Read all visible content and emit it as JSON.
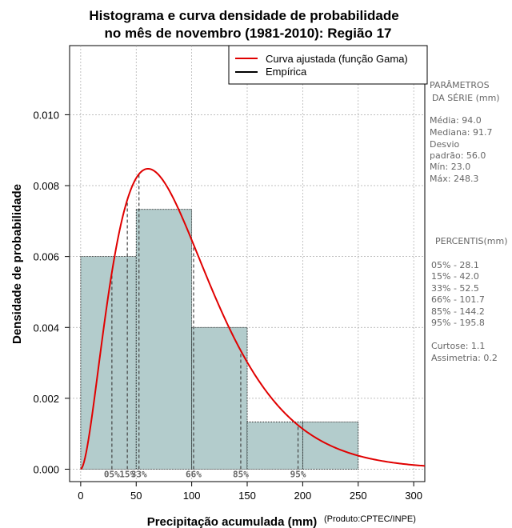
{
  "colors": {
    "bar_fill": "#b3cccc",
    "curve": "#e00000",
    "grid": "#aaaaaa",
    "side_text": "#666666"
  },
  "chart_data": {
    "type": "bar",
    "title_line1": "Histograma e curva densidade de probabilidade",
    "title_line2": "no mês de novembro (1981-2010): Região 17",
    "xlabel": "Precipitação acumulada (mm)",
    "ylabel": "Densidade de probabilidade",
    "credit": "(Produto:CPTEC/INPE)",
    "xlim": [
      -10,
      310
    ],
    "ylim": [
      -0.00035,
      0.01195
    ],
    "x_ticks": [
      0,
      50,
      100,
      150,
      200,
      250,
      300
    ],
    "y_ticks": [
      0.0,
      0.002,
      0.004,
      0.006,
      0.008,
      0.01
    ],
    "y_tick_labels": [
      "0.000",
      "0.002",
      "0.004",
      "0.006",
      "0.008",
      "0.010"
    ],
    "histogram": [
      {
        "x0": 0,
        "x1": 50,
        "density": 0.006
      },
      {
        "x0": 50,
        "x1": 100,
        "density": 0.00733
      },
      {
        "x0": 100,
        "x1": 150,
        "density": 0.004
      },
      {
        "x0": 150,
        "x1": 200,
        "density": 0.00133
      },
      {
        "x0": 200,
        "x1": 250,
        "density": 0.00133
      }
    ],
    "gamma_curve": {
      "mean": 94.0,
      "sd": 56.0,
      "x": [
        0,
        5,
        10,
        15,
        20,
        25,
        30,
        35,
        40,
        45,
        50,
        55,
        60,
        65,
        70,
        75,
        80,
        85,
        90,
        95,
        100,
        110,
        120,
        130,
        140,
        150,
        160,
        170,
        180,
        190,
        200,
        210,
        220,
        230,
        240,
        250,
        260,
        270,
        280,
        290,
        300,
        310
      ]
    },
    "percentile_lines": [
      {
        "label": "05%",
        "x": 28.1
      },
      {
        "label": "15%",
        "x": 42.0
      },
      {
        "label": "33%",
        "x": 52.5
      },
      {
        "label": "66%",
        "x": 101.7
      },
      {
        "label": "85%",
        "x": 144.2
      },
      {
        "label": "95%",
        "x": 195.8
      }
    ],
    "legend": [
      {
        "label": "Curva ajustada (função Gama)",
        "color": "#e00000"
      },
      {
        "label": "Empírica",
        "color": "#000000"
      }
    ]
  },
  "side_panel": {
    "params_title1": "PARÂMETROS",
    "params_title2": "DA SÉRIE (mm)",
    "media": "Média:  94.0",
    "mediana": "Mediana:  91.7",
    "desvio1": "Desvio",
    "desvio2": "padrão:  56.0",
    "min": "Mín:  23.0",
    "max": "Máx:  248.3",
    "pct_title": "PERCENTIS(mm)",
    "p05": "05% -  28.1",
    "p15": "15% -  42.0",
    "p33": "33% -  52.5",
    "p66": "66% -  101.7",
    "p85": "85% -  144.2",
    "p95": "95% -  195.8",
    "curtose": "Curtose:  1.1",
    "assimetria": "Assimetria:  0.2"
  }
}
